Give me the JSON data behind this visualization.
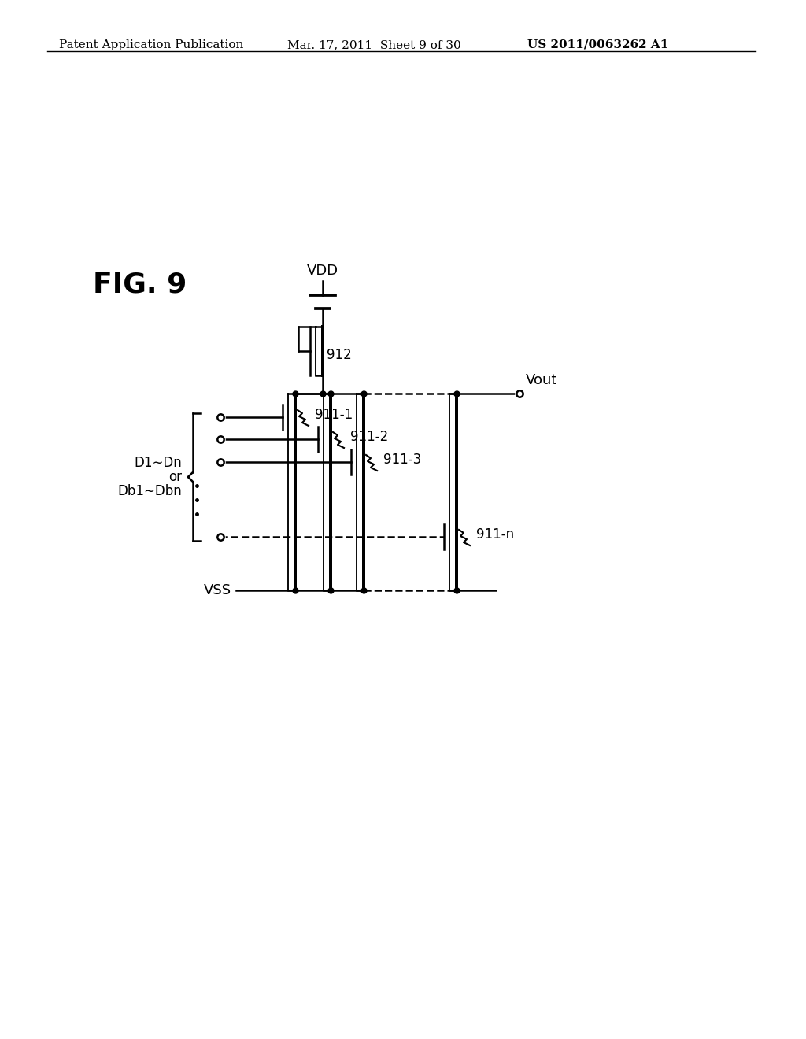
{
  "title_left": "Patent Application Publication",
  "title_mid": "Mar. 17, 2011  Sheet 9 of 30",
  "title_right": "US 2011/0063262 A1",
  "fig_label": "FIG. 9",
  "vdd_label": "VDD",
  "vss_label": "VSS",
  "vout_label": "Vout",
  "transistor_912_label": "912",
  "transistor_labels": [
    "911-1",
    "911-2",
    "911-3",
    "911-n"
  ],
  "input_label_line1": "D1∼Dn",
  "input_label_line2": "or",
  "input_label_line3": "Db1∼Dbn",
  "background_color": "#ffffff",
  "line_color": "#000000",
  "lw": 1.8
}
